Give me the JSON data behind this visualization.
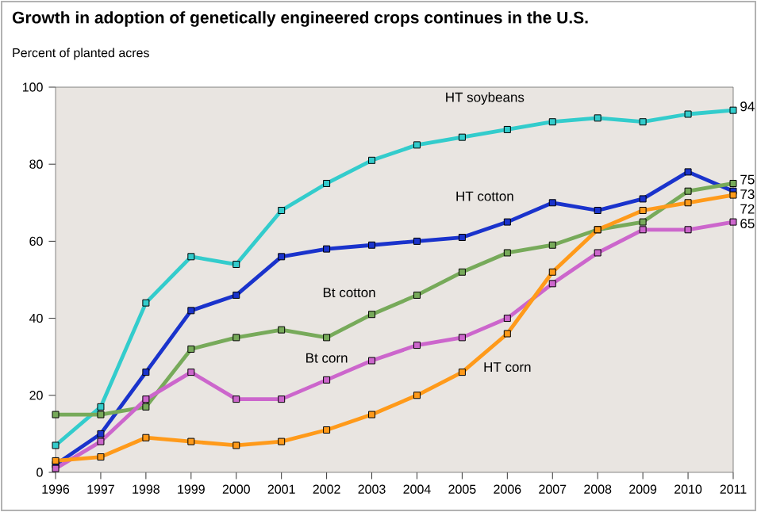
{
  "chart_data": {
    "type": "line",
    "title": "Growth in adoption of genetically engineered crops continues in the U.S.",
    "ylabel": "Percent of planted acres",
    "x": [
      1996,
      1997,
      1998,
      1999,
      2000,
      2001,
      2002,
      2003,
      2004,
      2005,
      2006,
      2007,
      2008,
      2009,
      2010,
      2011
    ],
    "xlim": [
      1996,
      2011
    ],
    "ylim": [
      0,
      100
    ],
    "xticks": [
      1996,
      1997,
      1998,
      1999,
      2000,
      2001,
      2002,
      2003,
      2004,
      2005,
      2006,
      2007,
      2008,
      2009,
      2010,
      2011
    ],
    "yticks": [
      0,
      20,
      40,
      60,
      80,
      100
    ],
    "marker": "square",
    "series": [
      {
        "name": "HT soybeans",
        "color": "#33cccc",
        "values": [
          7,
          17,
          44,
          56,
          54,
          68,
          75,
          81,
          85,
          87,
          89,
          91,
          92,
          91,
          93,
          94
        ],
        "value_labels": [
          null,
          null,
          null,
          null,
          null,
          null,
          null,
          null,
          null,
          null,
          null,
          null,
          null,
          null,
          null,
          "94"
        ]
      },
      {
        "name": "HT cotton",
        "color": "#1a33cc",
        "values": [
          2,
          10,
          26,
          42,
          46,
          56,
          58,
          59,
          60,
          61,
          65,
          70,
          68,
          71,
          78,
          73
        ],
        "value_labels": [
          null,
          null,
          null,
          null,
          null,
          null,
          null,
          null,
          null,
          null,
          null,
          null,
          null,
          null,
          null,
          "73"
        ]
      },
      {
        "name": "Bt cotton",
        "color": "#77aa5a",
        "values": [
          15,
          15,
          17,
          32,
          35,
          37,
          35,
          41,
          46,
          52,
          57,
          59,
          63,
          65,
          73,
          75
        ],
        "value_labels": [
          null,
          null,
          null,
          null,
          null,
          null,
          null,
          null,
          null,
          null,
          null,
          null,
          null,
          null,
          null,
          "75"
        ]
      },
      {
        "name": "Bt corn",
        "color": "#cc66cc",
        "values": [
          1,
          8,
          19,
          26,
          19,
          19,
          24,
          29,
          33,
          35,
          40,
          49,
          57,
          63,
          63,
          65
        ],
        "value_labels": [
          null,
          null,
          null,
          null,
          null,
          null,
          null,
          null,
          null,
          null,
          null,
          null,
          null,
          null,
          null,
          "65"
        ]
      },
      {
        "name": "HT corn",
        "color": "#ff9a1a",
        "values": [
          3,
          4,
          9,
          8,
          7,
          8,
          11,
          15,
          20,
          26,
          36,
          52,
          63,
          68,
          70,
          72
        ],
        "value_labels": [
          null,
          null,
          null,
          null,
          null,
          null,
          null,
          null,
          null,
          null,
          null,
          null,
          null,
          null,
          null,
          "72"
        ]
      }
    ]
  }
}
